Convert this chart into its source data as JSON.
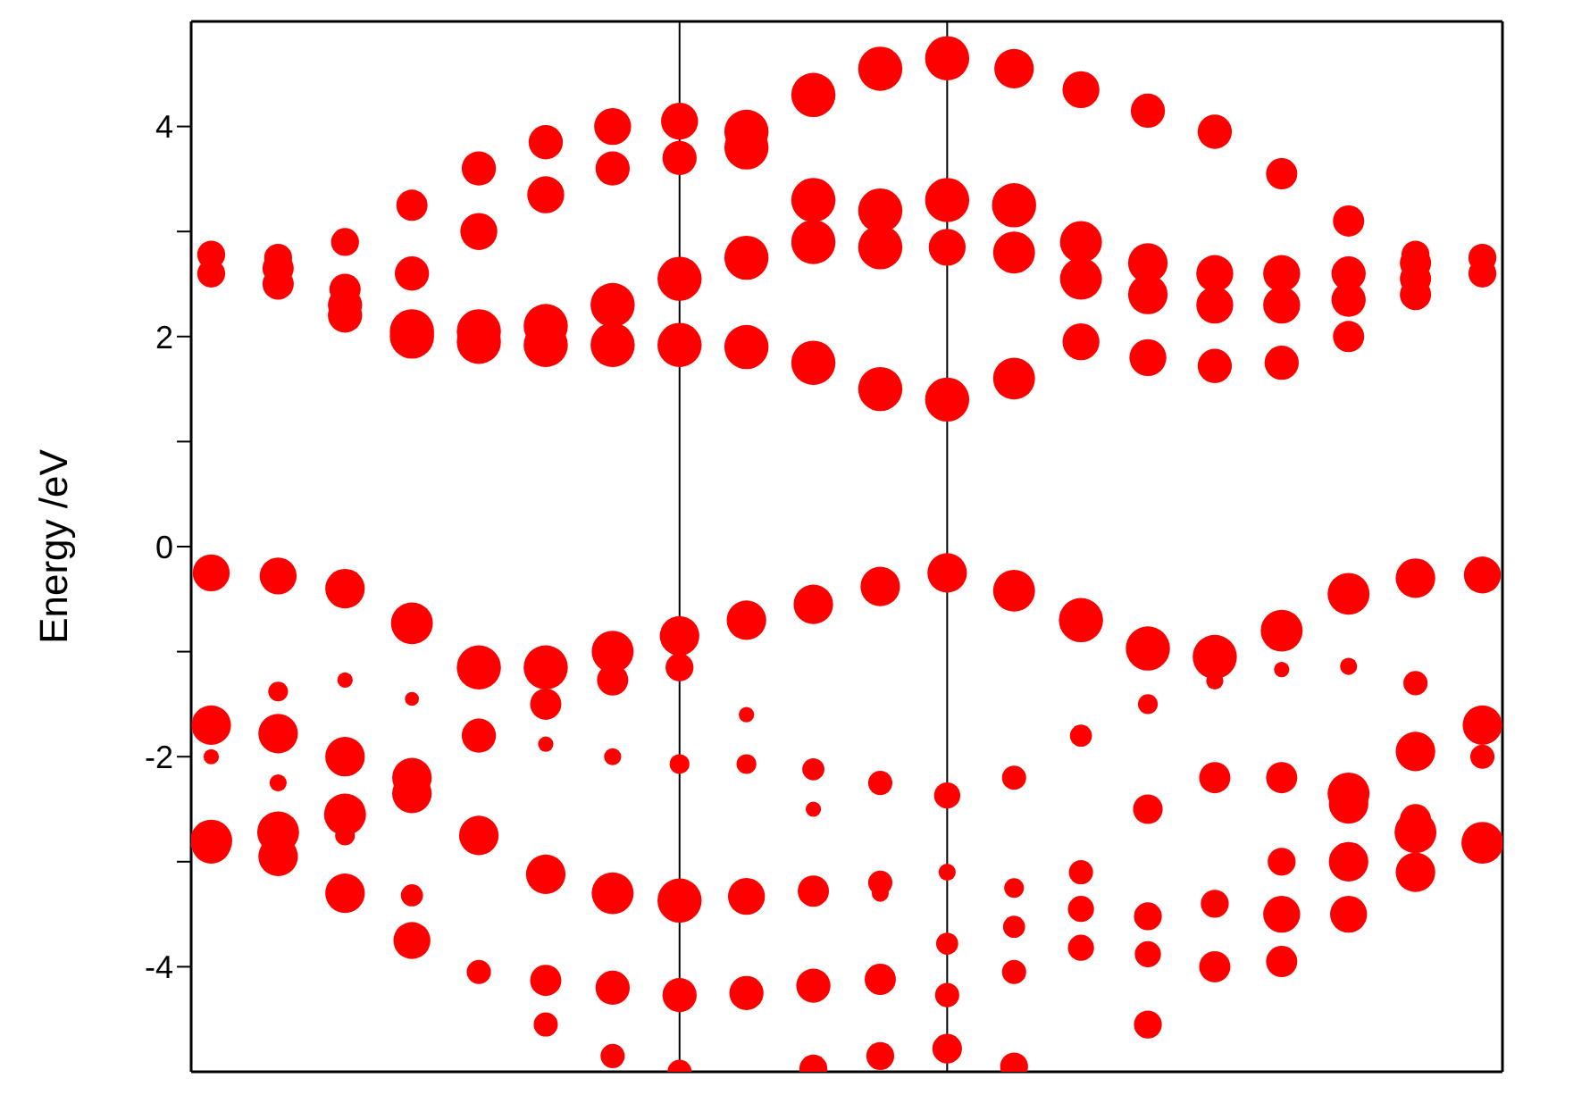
{
  "chart_data": {
    "type": "bubble",
    "ylabel": "Energy /eV",
    "categories": [
      null,
      null,
      null,
      null,
      null,
      null,
      null,
      null,
      null,
      null,
      null,
      null,
      null,
      null,
      null,
      null,
      null,
      null,
      null,
      null
    ],
    "ylim": [
      -5,
      5
    ],
    "yticks": [
      -4,
      {
        "value": -3,
        "label": null
      },
      -2,
      {
        "value": -1,
        "label": null
      },
      0,
      {
        "value": 1,
        "label": null
      },
      2,
      {
        "value": 3,
        "label": null
      },
      4
    ],
    "tick_labels": "y",
    "marker": "circle",
    "grid": false,
    "legend": false,
    "series": [
      {
        "color": "#ff0000",
        "values": [
          2.78,
          2.75,
          2.9,
          3.25,
          3.6,
          3.85,
          4.0,
          4.05,
          3.95,
          4.3,
          4.55,
          4.65,
          4.55,
          4.35,
          4.15,
          3.95,
          3.55,
          3.1,
          2.78,
          2.75
        ],
        "sizes": [
          0.4,
          0.4,
          0.4,
          0.5,
          0.6,
          0.6,
          0.7,
          0.7,
          1,
          1,
          1,
          1,
          0.8,
          0.7,
          0.6,
          0.6,
          0.5,
          0.5,
          0.4,
          0.4
        ]
      },
      {
        "color": "#ff0000",
        "values": [
          null,
          2.65,
          2.45,
          2.6,
          3.0,
          3.35,
          3.6,
          3.7,
          3.8,
          3.3,
          3.2,
          3.3,
          3.25,
          2.9,
          2.7,
          2.6,
          2.6,
          2.6,
          2.7,
          null
        ],
        "sizes": [
          null,
          0.5,
          0.5,
          0.6,
          0.7,
          0.7,
          0.6,
          0.6,
          1,
          1,
          1,
          1,
          1,
          0.9,
          0.8,
          0.7,
          0.7,
          0.6,
          0.5,
          null
        ]
      },
      {
        "color": "#ff0000",
        "values": [
          2.6,
          null,
          2.3,
          2.05,
          2.05,
          2.1,
          2.3,
          2.55,
          2.75,
          2.9,
          2.85,
          2.85,
          2.8,
          2.55,
          2.4,
          2.3,
          2.3,
          2.35,
          2.55,
          2.6
        ],
        "sizes": [
          0.4,
          null,
          0.6,
          1,
          1,
          1,
          1,
          1,
          1,
          1,
          1,
          0.7,
          0.9,
          0.9,
          0.8,
          0.7,
          0.7,
          0.6,
          0.5,
          0.4
        ]
      },
      {
        "color": "#ff0000",
        "values": [
          null,
          2.5,
          2.2,
          2.0,
          1.95,
          1.92,
          1.92,
          1.92,
          1.9,
          1.75,
          1.5,
          1.4,
          1.6,
          1.95,
          1.8,
          1.72,
          1.75,
          2.0,
          2.4,
          null
        ],
        "sizes": [
          null,
          0.5,
          0.6,
          1,
          1,
          1,
          1,
          1,
          1,
          1,
          1,
          1,
          0.9,
          0.7,
          0.7,
          0.6,
          0.6,
          0.5,
          0.5,
          null
        ]
      },
      {
        "color": "#ff0000",
        "values": [
          -0.25,
          -0.28,
          -0.4,
          -0.73,
          -1.15,
          -1.15,
          -1.0,
          -0.85,
          -0.7,
          -0.55,
          -0.38,
          -0.25,
          -0.42,
          -0.7,
          -0.97,
          -1.05,
          -0.8,
          -0.45,
          -0.3,
          -0.27
        ],
        "sizes": [
          0.7,
          0.7,
          0.8,
          0.9,
          1,
          1,
          0.9,
          0.8,
          0.8,
          0.8,
          0.8,
          0.8,
          0.9,
          1,
          1,
          1,
          0.9,
          0.9,
          0.8,
          0.7
        ]
      },
      {
        "color": "#ff0000",
        "values": [
          null,
          -1.38,
          -1.27,
          -1.45,
          null,
          -1.88,
          -2.0,
          -2.07,
          -2.07,
          -2.12,
          -2.25,
          -2.37,
          -2.2,
          -1.8,
          -1.5,
          -1.28,
          -1.17,
          -1.14,
          -1.3,
          null
        ],
        "sizes": [
          null,
          0.2,
          0.12,
          0.1,
          null,
          0.12,
          0.15,
          0.2,
          0.2,
          0.25,
          0.3,
          0.35,
          0.3,
          0.25,
          0.2,
          0.15,
          0.12,
          0.15,
          0.3,
          null
        ]
      },
      {
        "color": "#ff0000",
        "values": [
          -1.7,
          -1.78,
          -2.0,
          -2.35,
          -2.75,
          -3.12,
          -3.3,
          -3.37,
          -3.33,
          -3.28,
          -3.2,
          -3.1,
          -3.25,
          -3.45,
          -3.52,
          -3.4,
          -3.0,
          -2.35,
          -1.95,
          -1.7
        ],
        "sizes": [
          0.8,
          0.8,
          0.8,
          0.8,
          0.8,
          0.8,
          0.9,
          1,
          0.7,
          0.5,
          0.3,
          0.15,
          0.2,
          0.35,
          0.4,
          0.4,
          0.4,
          0.9,
          0.8,
          0.8
        ]
      },
      {
        "color": "#ff0000",
        "values": [
          -2.8,
          -2.72,
          -2.55,
          -2.2,
          -1.8,
          -1.5,
          -1.27,
          -1.15,
          -1.6,
          -2.5,
          -3.3,
          -3.78,
          -3.62,
          -3.1,
          -2.5,
          -2.2,
          -2.2,
          -2.45,
          -2.72,
          -2.82
        ],
        "sizes": [
          0.9,
          0.9,
          0.9,
          0.8,
          0.6,
          0.5,
          0.5,
          0.4,
          0.12,
          0.12,
          0.15,
          0.25,
          0.25,
          0.3,
          0.45,
          0.5,
          0.5,
          0.8,
          0.9,
          0.9
        ]
      },
      {
        "color": "#ff0000",
        "values": [
          -2.0,
          -2.25,
          -2.75,
          -3.32,
          -4.05,
          -4.55,
          -4.85,
          -5.0,
          null,
          -4.97,
          -4.85,
          -4.78,
          -4.95,
          null,
          -4.55,
          -4.0,
          -3.5,
          -3.0,
          -2.6,
          -2.0
        ],
        "sizes": [
          0.12,
          0.15,
          0.2,
          0.25,
          0.3,
          0.3,
          0.3,
          0.3,
          null,
          0.4,
          0.4,
          0.45,
          0.4,
          null,
          0.4,
          0.5,
          0.7,
          0.8,
          0.5,
          0.3
        ]
      },
      {
        "color": "#ff0000",
        "values": [
          -2.83,
          -2.95,
          -3.3,
          -3.75,
          null,
          -4.13,
          -4.2,
          -4.27,
          -4.25,
          -4.18,
          -4.12,
          -4.27,
          -4.05,
          -3.82,
          -3.88,
          null,
          -3.95,
          -3.5,
          -3.1,
          null
        ],
        "sizes": [
          0.8,
          0.8,
          0.8,
          0.7,
          null,
          0.5,
          0.6,
          0.6,
          0.6,
          0.6,
          0.5,
          0.3,
          0.3,
          0.35,
          0.35,
          null,
          0.5,
          0.7,
          0.8,
          null
        ]
      }
    ]
  }
}
